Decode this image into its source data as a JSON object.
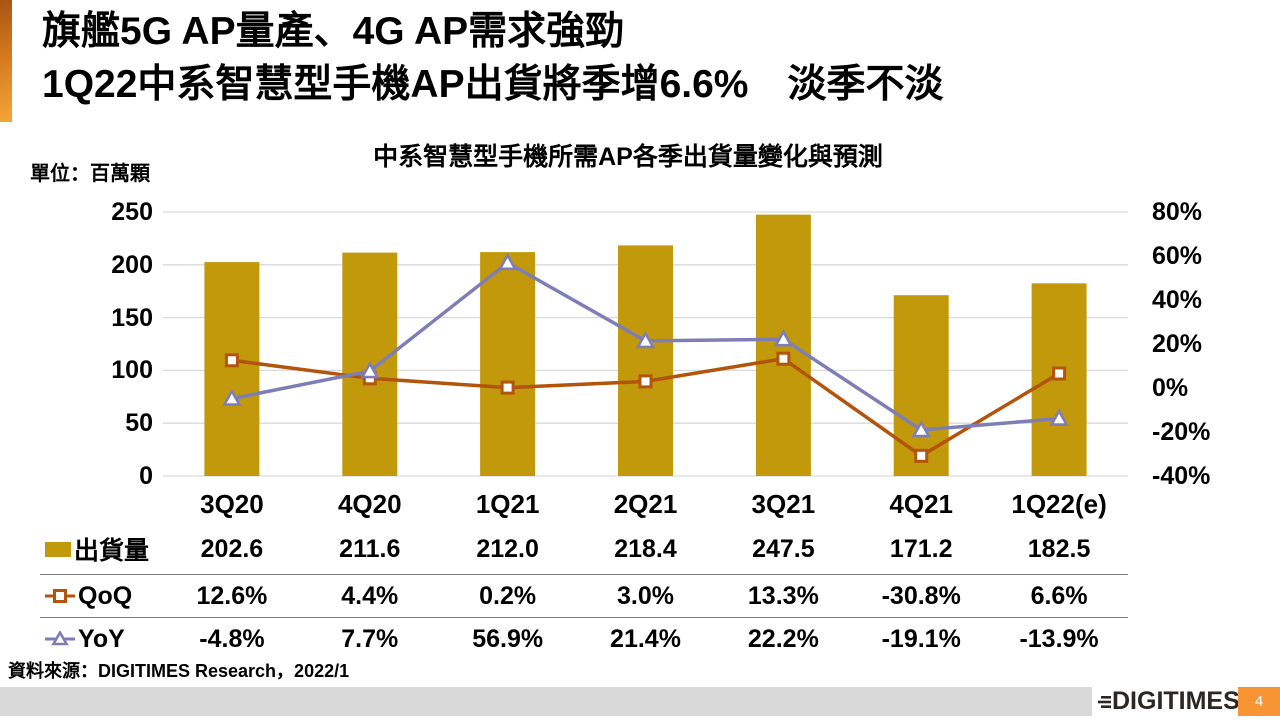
{
  "slide": {
    "title_line1": "旗艦5G AP量產、4G AP需求強勁",
    "title_line2": "1Q22中系智慧型手機AP出貨將季增6.6%　淡季不淡",
    "source_note": "資料來源：DIGITIMES Research，2022/1",
    "logo_text": "DIGITIMES",
    "page_number": "4",
    "accent_color": "#E8881A",
    "footer_bar_color": "#D9D9D9",
    "page_badge_color": "#F79433"
  },
  "chart_data": {
    "type": "bar+line combo",
    "title": "中系智慧型手機所需AP各季出貨量變化與預測",
    "unit_label": "單位：百萬顆",
    "grid": true,
    "legend_position": "table rows left of data",
    "categories": [
      "3Q20",
      "4Q20",
      "1Q21",
      "2Q21",
      "3Q21",
      "4Q21",
      "1Q22(e)"
    ],
    "left_axis": {
      "min": 0,
      "max": 250,
      "tick_step": 50,
      "tick_labels": [
        "250",
        "200",
        "150",
        "100",
        "50",
        "0"
      ],
      "tick_values": [
        250,
        200,
        150,
        100,
        50,
        0
      ]
    },
    "right_axis": {
      "min": -40,
      "max": 80,
      "tick_step": 20,
      "tick_labels": [
        "80%",
        "60%",
        "40%",
        "20%",
        "0%",
        "-20%",
        "-40%"
      ],
      "tick_values": [
        80,
        60,
        40,
        20,
        0,
        -20,
        -40
      ]
    },
    "series": [
      {
        "name": "出貨量",
        "id": "shipments",
        "type": "bar",
        "axis": "left",
        "color": "#C1990B",
        "values": [
          202.6,
          211.6,
          212.0,
          218.4,
          247.5,
          171.2,
          182.5
        ],
        "display": [
          "202.6",
          "211.6",
          "212.0",
          "218.4",
          "247.5",
          "171.2",
          "182.5"
        ]
      },
      {
        "name": "QoQ",
        "id": "qoq",
        "type": "line",
        "marker": "square",
        "axis": "right",
        "color": "#B3540C",
        "values": [
          12.6,
          4.4,
          0.2,
          3.0,
          13.3,
          -30.8,
          6.6
        ],
        "display": [
          "12.6%",
          "4.4%",
          "0.2%",
          "3.0%",
          "13.3%",
          "-30.8%",
          "6.6%"
        ]
      },
      {
        "name": "YoY",
        "id": "yoy",
        "type": "line",
        "marker": "triangle",
        "axis": "right",
        "color": "#7E7EB7",
        "values": [
          -4.8,
          7.7,
          56.9,
          21.4,
          22.2,
          -19.1,
          -13.9
        ],
        "display": [
          "-4.8%",
          "7.7%",
          "56.9%",
          "21.4%",
          "22.2%",
          "-19.1%",
          "-13.9%"
        ]
      }
    ]
  }
}
